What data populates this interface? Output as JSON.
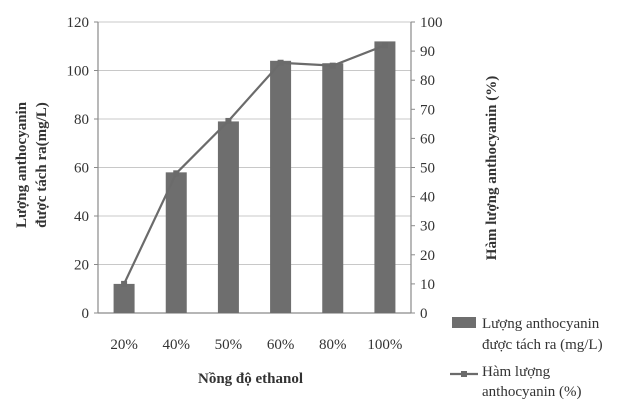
{
  "chart_data": {
    "type": "bar",
    "categories": [
      "20%",
      "40%",
      "50%",
      "60%",
      "80%",
      "100%"
    ],
    "series": [
      {
        "name": "Lượng anthocyanin được tách ra (mg/L)",
        "type": "bar",
        "axis": "left",
        "values": [
          12,
          58,
          79,
          104,
          103,
          112
        ]
      },
      {
        "name": "Hàm lượng anthocyanin (%)",
        "type": "line",
        "axis": "right",
        "values": [
          10,
          48,
          66,
          86,
          85,
          92
        ]
      }
    ],
    "xlabel": "Nồng độ ethanol",
    "ylabel_left_lines": [
      "Lượng anthocyanin",
      "được tách ra(mg/L)"
    ],
    "ylabel_right": "Hàm lượng anthocyanin (%)",
    "ylim_left": [
      0,
      120
    ],
    "yticks_left": [
      0,
      20,
      40,
      60,
      80,
      100,
      120
    ],
    "ylim_right": [
      0,
      100
    ],
    "yticks_right": [
      0,
      10,
      20,
      30,
      40,
      50,
      60,
      70,
      80,
      90,
      100
    ],
    "legend": {
      "placement": "bottom-right",
      "bar_lines": [
        "Lượng anthocyanin",
        "được tách ra (mg/L)"
      ],
      "line_lines": [
        "Hàm lượng",
        "anthocyanin (%)"
      ]
    },
    "grid": "horizontal",
    "colors": {
      "bar": "#6e6e6e",
      "line": "#6b6b6b",
      "grid": "#c8c8c8",
      "axis": "#8a8a8a"
    }
  }
}
